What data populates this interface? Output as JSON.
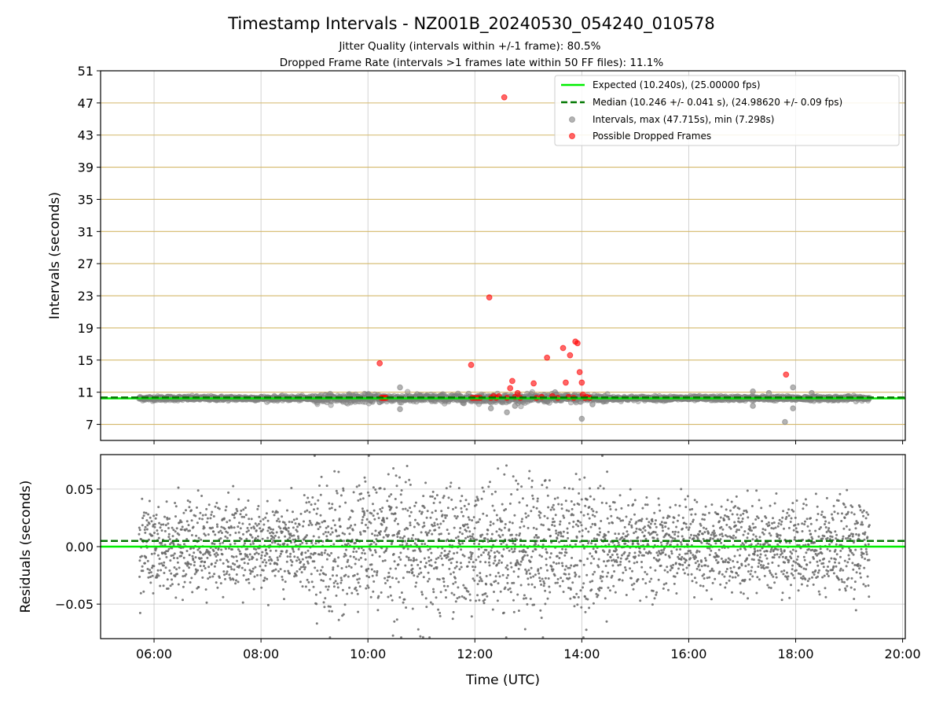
{
  "figure": {
    "title": "Timestamp Intervals - NZ001B_20240530_054240_010578",
    "subtitle_1": "Jitter Quality (intervals within +/-1 frame): 80.5%",
    "subtitle_2": "Dropped Frame Rate (intervals >1 frames late within 50 FF files): 11.1%"
  },
  "colors": {
    "expected": "#00ee00",
    "median": "#007700",
    "intervals": "#808080",
    "dropped": "#ff0000",
    "hlines": "#d4b86a",
    "grid": "#b0b0b0"
  },
  "chart_data": [
    {
      "type": "scatter",
      "title": "",
      "xlabel": "",
      "ylabel": "Intervals (seconds)",
      "x_unit": "hours UTC",
      "xlim": [
        5.0,
        20.05
      ],
      "ylim": [
        5.0,
        51.0
      ],
      "x_ticks": [
        6,
        8,
        10,
        12,
        14,
        16,
        18,
        20
      ],
      "y_ticks": [
        7,
        11,
        15,
        19,
        23,
        27,
        31,
        35,
        39,
        43,
        47,
        51
      ],
      "y_tick_labels": [
        "7",
        "11",
        "15",
        "19",
        "23",
        "27",
        "31",
        "35",
        "39",
        "43",
        "47",
        "51"
      ],
      "frame_lines": [
        7,
        11,
        15,
        19,
        23,
        27,
        31,
        35,
        39,
        43,
        47,
        51
      ],
      "grid": true,
      "legend_position": "top-right",
      "legend": [
        "Expected (10.240s), (25.00000 fps)",
        "Median (10.246 +/- 0.041 s), (24.98620 +/- 0.09 fps)",
        "Intervals, max (47.715s), min (7.298s)",
        "Possible Dropped Frames"
      ],
      "series": [
        {
          "name": "Expected (10.240s), (25.00000 fps)",
          "kind": "hline",
          "y": 10.24
        },
        {
          "name": "Median (10.246 +/- 0.041 s), (24.98620 +/- 0.09 fps)",
          "kind": "hline",
          "y": 10.246
        },
        {
          "name": "Intervals, max (47.715s), min (7.298s)",
          "kind": "scatter",
          "x_range": [
            5.72,
            19.38
          ],
          "y_center": 10.24,
          "outliers": [
            [
              10.6,
              11.6
            ],
            [
              10.6,
              8.9
            ],
            [
              12.3,
              9.0
            ],
            [
              12.6,
              8.5
            ],
            [
              12.75,
              9.3
            ],
            [
              13.5,
              11.0
            ],
            [
              14.0,
              7.7
            ],
            [
              14.2,
              9.5
            ],
            [
              17.2,
              11.1
            ],
            [
              17.2,
              9.3
            ],
            [
              17.8,
              7.3
            ],
            [
              17.95,
              11.6
            ],
            [
              17.95,
              9.0
            ],
            [
              17.5,
              10.9
            ],
            [
              18.3,
              10.9
            ]
          ]
        },
        {
          "name": "Possible Dropped Frames",
          "kind": "scatter",
          "points": [
            [
              10.22,
              14.6
            ],
            [
              10.25,
              10.3
            ],
            [
              10.28,
              10.3
            ],
            [
              10.31,
              10.3
            ],
            [
              10.34,
              10.3
            ],
            [
              11.93,
              14.4
            ],
            [
              11.95,
              10.3
            ],
            [
              12.0,
              10.3
            ],
            [
              12.05,
              10.3
            ],
            [
              12.1,
              10.3
            ],
            [
              12.27,
              22.8
            ],
            [
              12.3,
              10.3
            ],
            [
              12.35,
              10.5
            ],
            [
              12.4,
              10.3
            ],
            [
              12.45,
              10.5
            ],
            [
              12.55,
              47.7
            ],
            [
              12.6,
              10.3
            ],
            [
              12.66,
              11.5
            ],
            [
              12.7,
              12.4
            ],
            [
              12.75,
              10.4
            ],
            [
              12.8,
              10.9
            ],
            [
              12.85,
              10.3
            ],
            [
              13.1,
              12.1
            ],
            [
              13.15,
              10.3
            ],
            [
              13.25,
              10.4
            ],
            [
              13.35,
              15.3
            ],
            [
              13.45,
              10.5
            ],
            [
              13.55,
              10.3
            ],
            [
              13.65,
              16.5
            ],
            [
              13.7,
              12.2
            ],
            [
              13.75,
              10.4
            ],
            [
              13.78,
              15.6
            ],
            [
              13.85,
              10.3
            ],
            [
              13.88,
              17.3
            ],
            [
              13.92,
              17.1
            ],
            [
              13.96,
              13.5
            ],
            [
              14.0,
              12.2
            ],
            [
              14.02,
              10.7
            ],
            [
              14.06,
              10.3
            ],
            [
              14.1,
              10.4
            ],
            [
              14.15,
              10.3
            ],
            [
              17.82,
              13.2
            ]
          ]
        }
      ]
    },
    {
      "type": "scatter",
      "title": "",
      "xlabel": "Time (UTC)",
      "ylabel": "Residuals (seconds)",
      "x_unit": "hours UTC",
      "xlim": [
        5.0,
        20.05
      ],
      "ylim": [
        -0.08,
        0.08
      ],
      "x_ticks": [
        6,
        8,
        10,
        12,
        14,
        16,
        18,
        20
      ],
      "x_tick_labels": [
        "06:00",
        "08:00",
        "10:00",
        "12:00",
        "14:00",
        "16:00",
        "18:00",
        "20:00"
      ],
      "y_ticks": [
        -0.05,
        0.0,
        0.05
      ],
      "y_tick_labels": [
        "−0.05",
        "0.00",
        "0.05"
      ],
      "grid": true,
      "series": [
        {
          "kind": "hline",
          "y": 0.0
        },
        {
          "kind": "hline",
          "y": 0.005
        },
        {
          "kind": "scatter",
          "x_range": [
            5.72,
            19.38
          ],
          "levels": [
            0.0,
            0.02,
            -0.02
          ],
          "spread": 0.012
        }
      ]
    }
  ]
}
